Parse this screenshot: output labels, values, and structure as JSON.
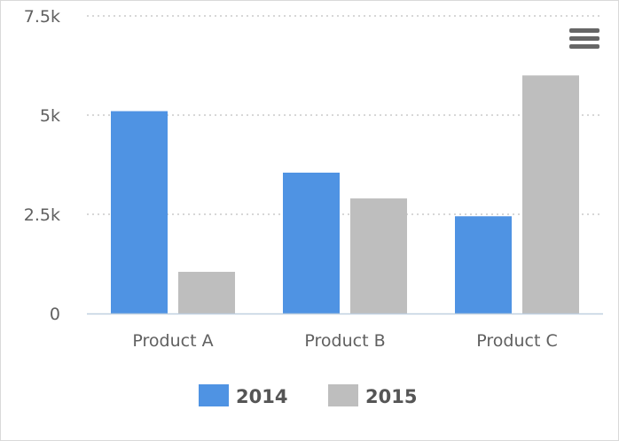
{
  "chart_data": {
    "type": "bar",
    "categories": [
      "Product A",
      "Product B",
      "Product C"
    ],
    "series": [
      {
        "name": "2014",
        "values": [
          5100,
          3550,
          2450
        ],
        "color": "#4f93e3"
      },
      {
        "name": "2015",
        "values": [
          1050,
          2900,
          6000
        ],
        "color": "#bebebe"
      }
    ],
    "ylim": [
      0,
      7500
    ],
    "yticks": [
      0,
      2500,
      5000,
      7500
    ],
    "ytick_labels": [
      "0",
      "2.5k",
      "5k",
      "7.5k"
    ],
    "grid": true,
    "legend_position": "bottom-center",
    "title": "",
    "xlabel": "",
    "ylabel": ""
  },
  "icons": {
    "menu": "hamburger-menu-icon"
  },
  "colors": {
    "grid": "#bfbfbf",
    "axis": "#c0d0e0",
    "text": "#606060"
  }
}
